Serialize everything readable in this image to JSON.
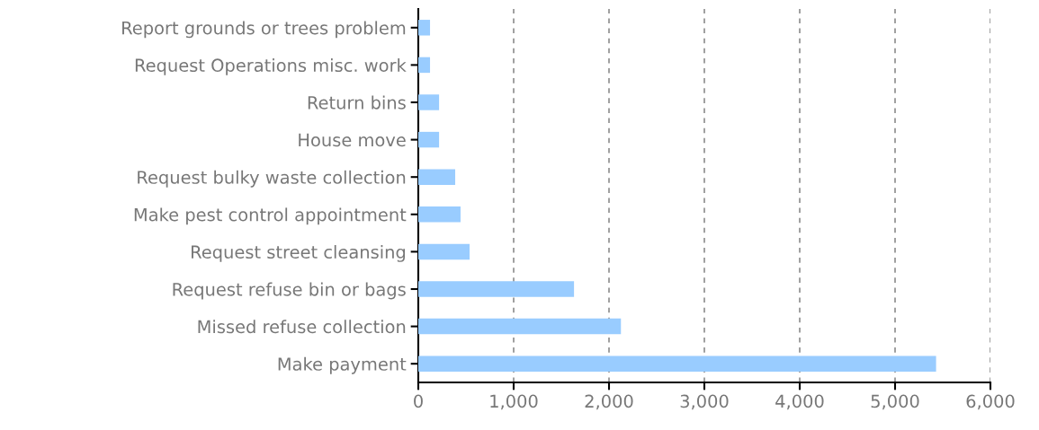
{
  "chart_data": {
    "type": "bar",
    "orientation": "horizontal",
    "categories": [
      "Report grounds or trees problem",
      "Request Operations misc. work",
      "Return bins",
      "House move",
      "Request bulky waste collection",
      "Make pest control appointment",
      "Request street cleansing",
      "Request refuse bin or bags",
      "Missed refuse collection",
      "Make payment"
    ],
    "values": [
      123,
      123,
      218,
      218,
      387,
      443,
      538,
      1633,
      2125,
      5430
    ],
    "color": "#99ccff",
    "xlim": [
      0,
      6000
    ],
    "xticks": [
      {
        "value": 0,
        "label": "0"
      },
      {
        "value": 1000,
        "label": "1,000"
      },
      {
        "value": 2000,
        "label": "2,000"
      },
      {
        "value": 3000,
        "label": "3,000"
      },
      {
        "value": 4000,
        "label": "4,000"
      },
      {
        "value": 5000,
        "label": "5,000"
      },
      {
        "value": 6000,
        "label": "6,000"
      }
    ],
    "grid": "x"
  }
}
